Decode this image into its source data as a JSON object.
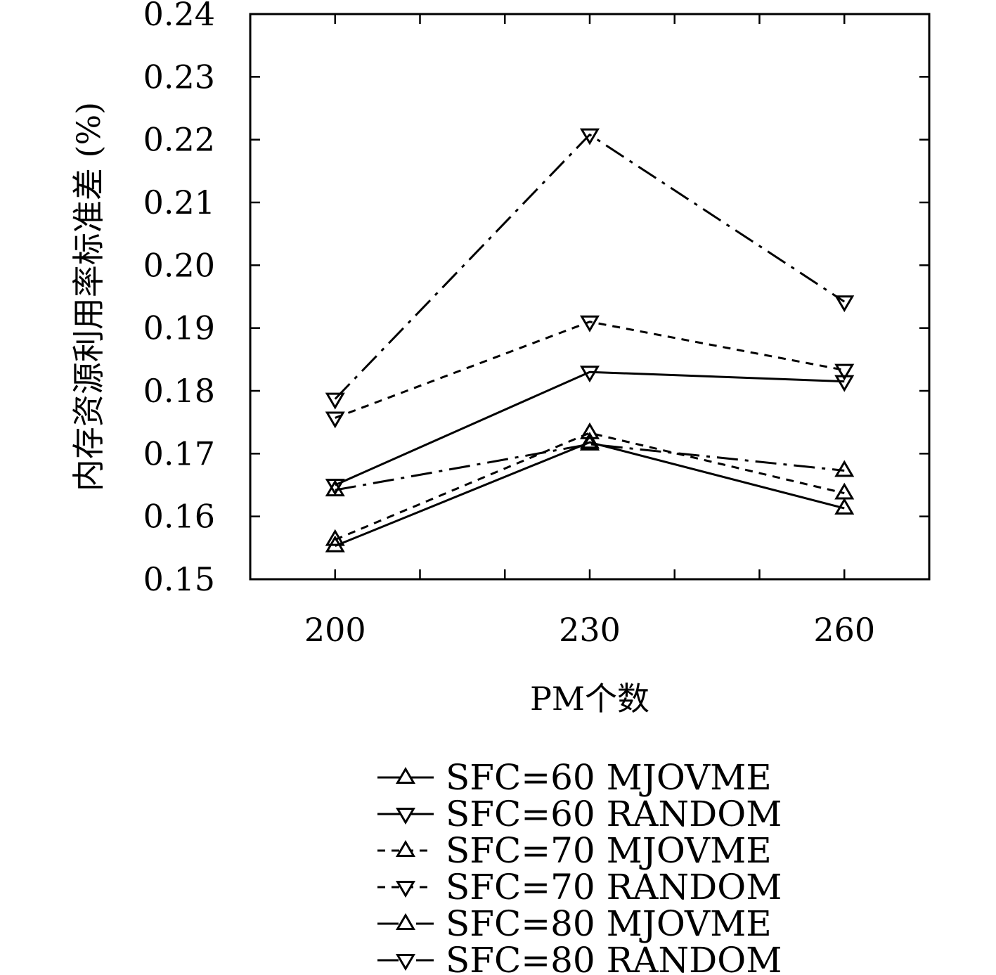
{
  "chart_data": {
    "type": "line",
    "xlabel": "PM个数",
    "ylabel": "内存资源利用率标准差 (%)",
    "categories": [
      "200",
      "230",
      "260"
    ],
    "x": [
      200,
      230,
      260
    ],
    "xlim": [
      190,
      270
    ],
    "ylim": [
      0.15,
      0.24
    ],
    "yticks": [
      "0.15",
      "0.16",
      "0.17",
      "0.18",
      "0.19",
      "0.20",
      "0.21",
      "0.22",
      "0.23",
      "0.24"
    ],
    "ytick_values": [
      0.15,
      0.16,
      0.17,
      0.18,
      0.19,
      0.2,
      0.21,
      0.22,
      0.23,
      0.24
    ],
    "grid": false,
    "legend_position": "bottom",
    "series": [
      {
        "name": "SFC=60 MJOVME",
        "values": [
          0.1553,
          0.1718,
          0.1613
        ],
        "line_style": "solid",
        "marker": "triangle-up"
      },
      {
        "name": "SFC=60 RANDOM",
        "values": [
          0.165,
          0.183,
          0.1815
        ],
        "line_style": "solid",
        "marker": "triangle-down"
      },
      {
        "name": "SFC=70 MJOVME",
        "values": [
          0.1563,
          0.1733,
          0.1637
        ],
        "line_style": "dashed",
        "marker": "triangle-up"
      },
      {
        "name": "SFC=70 RANDOM",
        "values": [
          0.1757,
          0.191,
          0.1833
        ],
        "line_style": "dashed",
        "marker": "triangle-down"
      },
      {
        "name": "SFC=80 MJOVME",
        "values": [
          0.1642,
          0.1715,
          0.1673
        ],
        "line_style": "dashdot",
        "marker": "triangle-up"
      },
      {
        "name": "SFC=80 RANDOM",
        "values": [
          0.1787,
          0.2208,
          0.1942
        ],
        "line_style": "dashdot",
        "marker": "triangle-down"
      }
    ],
    "colors": {
      "line": "#000000",
      "background": "#ffffff"
    }
  }
}
